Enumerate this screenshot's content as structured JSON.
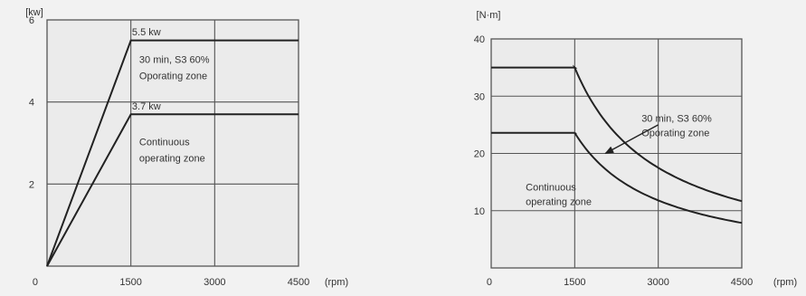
{
  "chart_data": [
    {
      "type": "line",
      "ylabel": "[kw]",
      "xlabel": "(rpm)",
      "xlim": [
        0,
        4500
      ],
      "ylim": [
        0,
        6
      ],
      "x_ticks": [
        "0",
        "1500",
        "3000",
        "4500"
      ],
      "y_ticks": [
        "2",
        "4",
        "6"
      ],
      "grid": true,
      "series": [
        {
          "name": "30 min, S3 60% Oporating zone",
          "x": [
            0,
            1500,
            4500
          ],
          "y": [
            0,
            5.5,
            5.5
          ]
        },
        {
          "name": "Continuous operating zone",
          "x": [
            0,
            1500,
            4500
          ],
          "y": [
            0,
            3.7,
            3.7
          ]
        }
      ],
      "annotations": [
        {
          "text": "5.5 kw",
          "x": 1520,
          "y": 5.62
        },
        {
          "text": "30 min, S3 60%",
          "x": 1650,
          "y": 4.95
        },
        {
          "text": "Oporating zone",
          "x": 1650,
          "y": 4.55
        },
        {
          "text": "3.7 kw",
          "x": 1520,
          "y": 3.82
        },
        {
          "text": "Continuous",
          "x": 1650,
          "y": 2.95
        },
        {
          "text": "operating zone",
          "x": 1650,
          "y": 2.55
        }
      ]
    },
    {
      "type": "line",
      "ylabel": "[N·m]",
      "xlabel": "(rpm)",
      "xlim": [
        0,
        4500
      ],
      "ylim": [
        0,
        40
      ],
      "x_ticks": [
        "0",
        "1500",
        "3000",
        "4500"
      ],
      "y_ticks": [
        "10",
        "20",
        "30",
        "40"
      ],
      "grid": true,
      "series": [
        {
          "name": "30 min, S3 60% Oporating zone",
          "x": [
            0,
            1500,
            1800,
            2100,
            2500,
            3000,
            3500,
            4000,
            4500
          ],
          "y": [
            35,
            35,
            29.2,
            25,
            21,
            17.5,
            15,
            13.1,
            11.7
          ]
        },
        {
          "name": "Continuous operating zone",
          "x": [
            0,
            1500,
            1800,
            2100,
            2500,
            3000,
            3500,
            4000,
            4500
          ],
          "y": [
            23.6,
            23.6,
            19.7,
            16.9,
            14.2,
            11.8,
            10.1,
            8.9,
            7.9
          ]
        }
      ],
      "annotations": [
        {
          "text": "30 min, S3 60%",
          "x": 2700,
          "y": 25.5
        },
        {
          "text": "Oporating zone",
          "x": 2700,
          "y": 23
        },
        {
          "text": "Continuous",
          "x": 620,
          "y": 13.5
        },
        {
          "text": "operating zone",
          "x": 620,
          "y": 11
        }
      ],
      "arrow": {
        "from": [
          3000,
          25
        ],
        "to": [
          2050,
          20
        ]
      }
    }
  ]
}
